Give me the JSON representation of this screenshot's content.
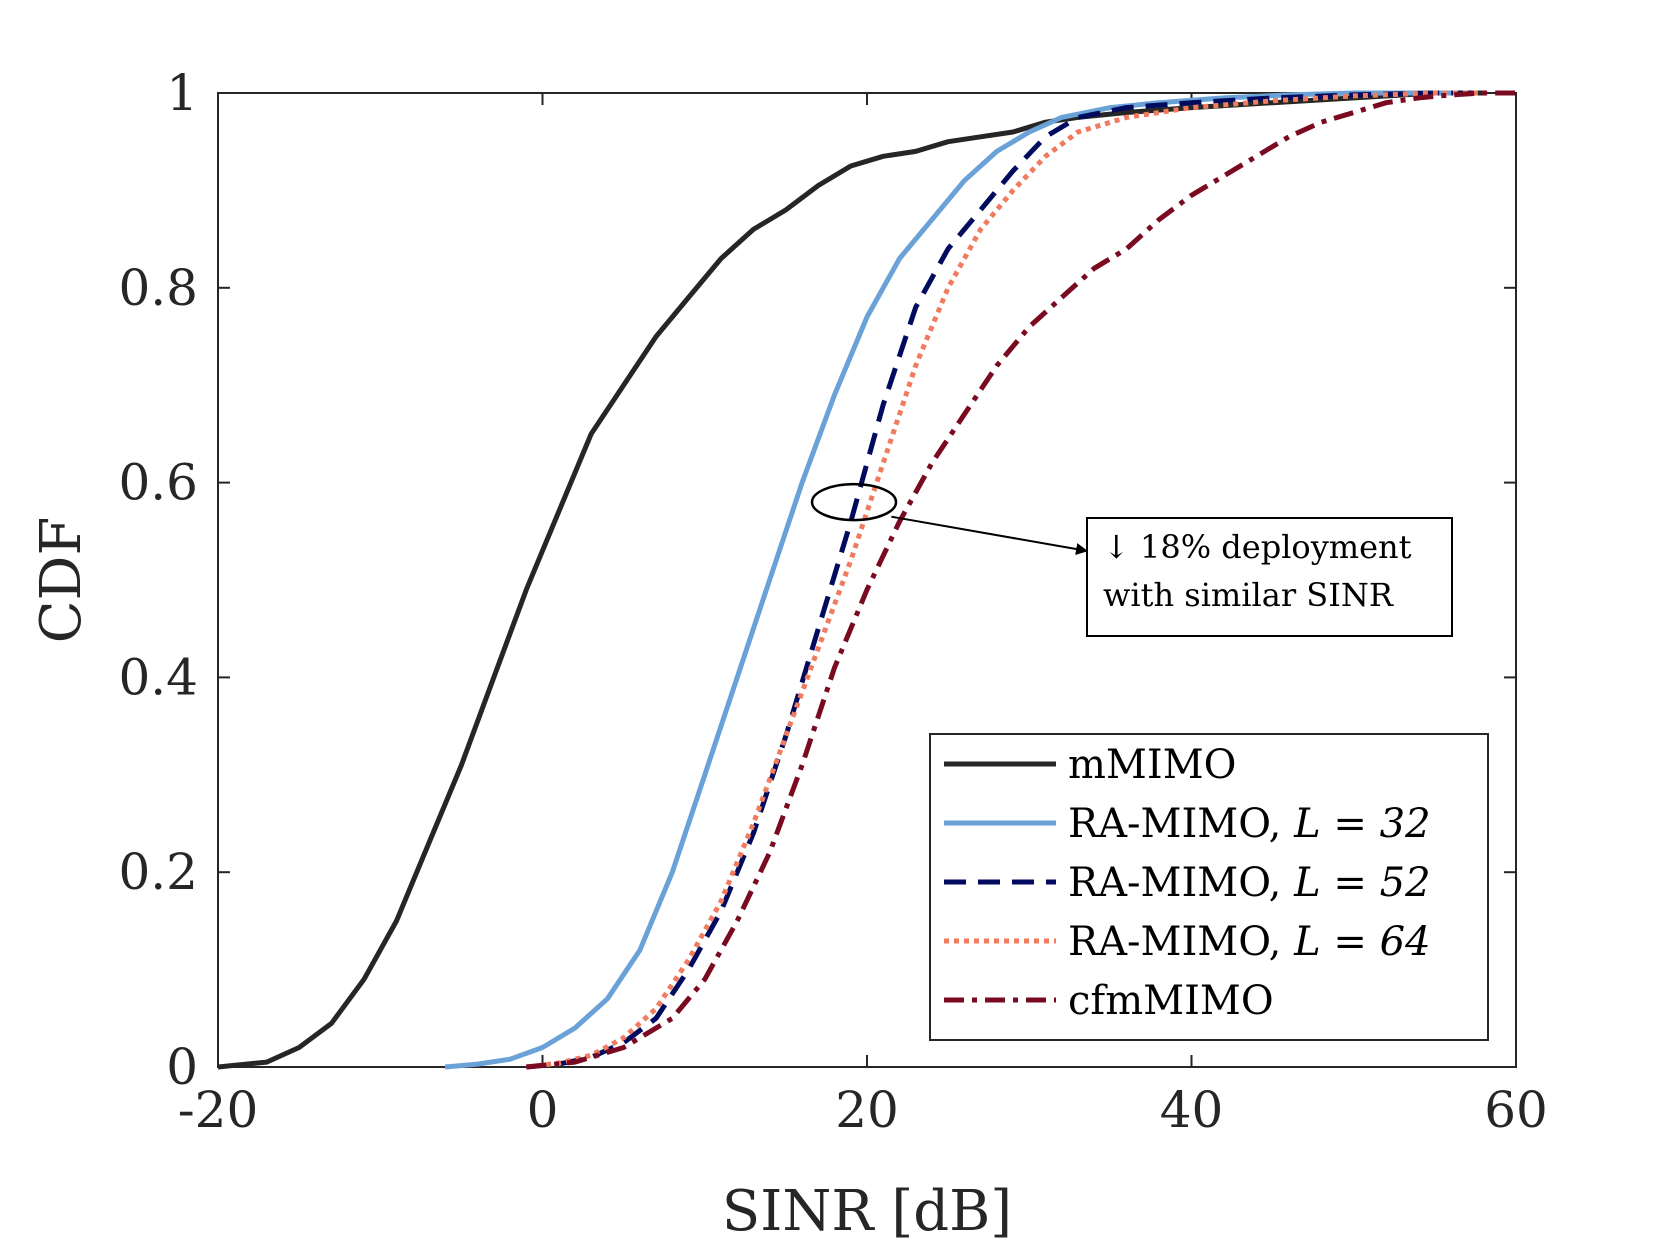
{
  "chart_data": {
    "type": "line",
    "title": "",
    "xlabel": "SINR [dB]",
    "ylabel": "CDF",
    "xlim": [
      -20,
      60
    ],
    "ylim": [
      0,
      1
    ],
    "xticks": [
      -20,
      0,
      20,
      40,
      60
    ],
    "xtick_labels": [
      "-20",
      "0",
      "20",
      "40",
      "60"
    ],
    "yticks": [
      0,
      0.2,
      0.4,
      0.6,
      0.8,
      1
    ],
    "ytick_labels": [
      "0",
      "0.2",
      "0.4",
      "0.6",
      "0.8",
      "1"
    ],
    "grid": false,
    "legend_position": "bottom-right",
    "series": [
      {
        "name": "mMIMO",
        "legend_label": "mMIMO",
        "color": "#262626",
        "style": "solid",
        "x": [
          -20,
          -17,
          -15,
          -13,
          -11,
          -9,
          -7,
          -5,
          -3,
          -1,
          1,
          3,
          5,
          7,
          9,
          11,
          13,
          15,
          17,
          19,
          21,
          23,
          25,
          27,
          29,
          31,
          33,
          36,
          40,
          45,
          50,
          55,
          58
        ],
        "y": [
          0,
          0.005,
          0.02,
          0.045,
          0.09,
          0.15,
          0.23,
          0.31,
          0.4,
          0.49,
          0.57,
          0.65,
          0.7,
          0.75,
          0.79,
          0.83,
          0.86,
          0.88,
          0.905,
          0.925,
          0.935,
          0.94,
          0.95,
          0.955,
          0.96,
          0.97,
          0.975,
          0.98,
          0.985,
          0.99,
          0.995,
          1.0,
          1.0
        ]
      },
      {
        "name": "RA-MIMO, L = 32",
        "legend_label": "RA-MIMO, ",
        "legend_math": "L = 32",
        "color": "#6aa2d8",
        "style": "solid",
        "x": [
          -6,
          -4,
          -2,
          0,
          2,
          4,
          6,
          8,
          10,
          12,
          14,
          16,
          18,
          20,
          22,
          24,
          26,
          28,
          30,
          32,
          35,
          38,
          42,
          46,
          50,
          55,
          57
        ],
        "y": [
          0,
          0.003,
          0.008,
          0.02,
          0.04,
          0.07,
          0.12,
          0.2,
          0.3,
          0.4,
          0.5,
          0.6,
          0.69,
          0.77,
          0.83,
          0.87,
          0.91,
          0.94,
          0.96,
          0.975,
          0.985,
          0.99,
          0.995,
          0.998,
          1.0,
          1.0,
          1.0
        ]
      },
      {
        "name": "RA-MIMO, L = 52",
        "legend_label": "RA-MIMO, ",
        "legend_math": "L = 52",
        "color": "#000a5e",
        "style": "dashed",
        "x": [
          -1,
          1,
          3,
          5,
          7,
          9,
          11,
          13,
          15,
          17,
          19,
          21,
          23,
          25,
          27,
          29,
          31,
          33,
          36,
          40,
          45,
          50,
          55,
          58
        ],
        "y": [
          0,
          0.003,
          0.01,
          0.025,
          0.05,
          0.1,
          0.16,
          0.24,
          0.34,
          0.45,
          0.56,
          0.68,
          0.78,
          0.84,
          0.88,
          0.92,
          0.955,
          0.975,
          0.985,
          0.99,
          0.995,
          0.998,
          1.0,
          1.0
        ]
      },
      {
        "name": "RA-MIMO, L = 64",
        "legend_label": "RA-MIMO, ",
        "legend_math": "L = 64",
        "color": "#f07b5f",
        "style": "dotted",
        "x": [
          -1,
          1,
          3,
          5,
          7,
          9,
          11,
          13,
          15,
          17,
          19,
          21,
          23,
          25,
          27,
          29,
          31,
          33,
          36,
          40,
          45,
          50,
          55,
          58
        ],
        "y": [
          0,
          0.004,
          0.012,
          0.03,
          0.06,
          0.11,
          0.17,
          0.25,
          0.34,
          0.43,
          0.52,
          0.62,
          0.72,
          0.8,
          0.86,
          0.9,
          0.935,
          0.96,
          0.975,
          0.985,
          0.992,
          0.997,
          1.0,
          1.0
        ]
      },
      {
        "name": "cfmMIMO",
        "legend_label": "cfmMIMO",
        "color": "#7a0a1f",
        "style": "dashdot",
        "x": [
          -1,
          2,
          5,
          8,
          10,
          12,
          14,
          16,
          18,
          20,
          22,
          24,
          26,
          28,
          30,
          32,
          34,
          36,
          38,
          40,
          42,
          44,
          46,
          48,
          50,
          52,
          54,
          56,
          58,
          60
        ],
        "y": [
          0,
          0.005,
          0.02,
          0.05,
          0.09,
          0.15,
          0.22,
          0.31,
          0.41,
          0.49,
          0.56,
          0.62,
          0.67,
          0.72,
          0.76,
          0.79,
          0.82,
          0.84,
          0.87,
          0.895,
          0.915,
          0.935,
          0.955,
          0.97,
          0.98,
          0.99,
          0.995,
          0.998,
          1.0,
          1.0
        ]
      }
    ],
    "annotation": {
      "line1_arrow": "↓",
      "line1_text": " 18% deployment",
      "line2_text": "with similar SINR",
      "ellipse_center": [
        19.2,
        0.58
      ],
      "arrow_from": [
        21.5,
        0.565
      ],
      "arrow_to": [
        33.5,
        0.53
      ]
    }
  }
}
